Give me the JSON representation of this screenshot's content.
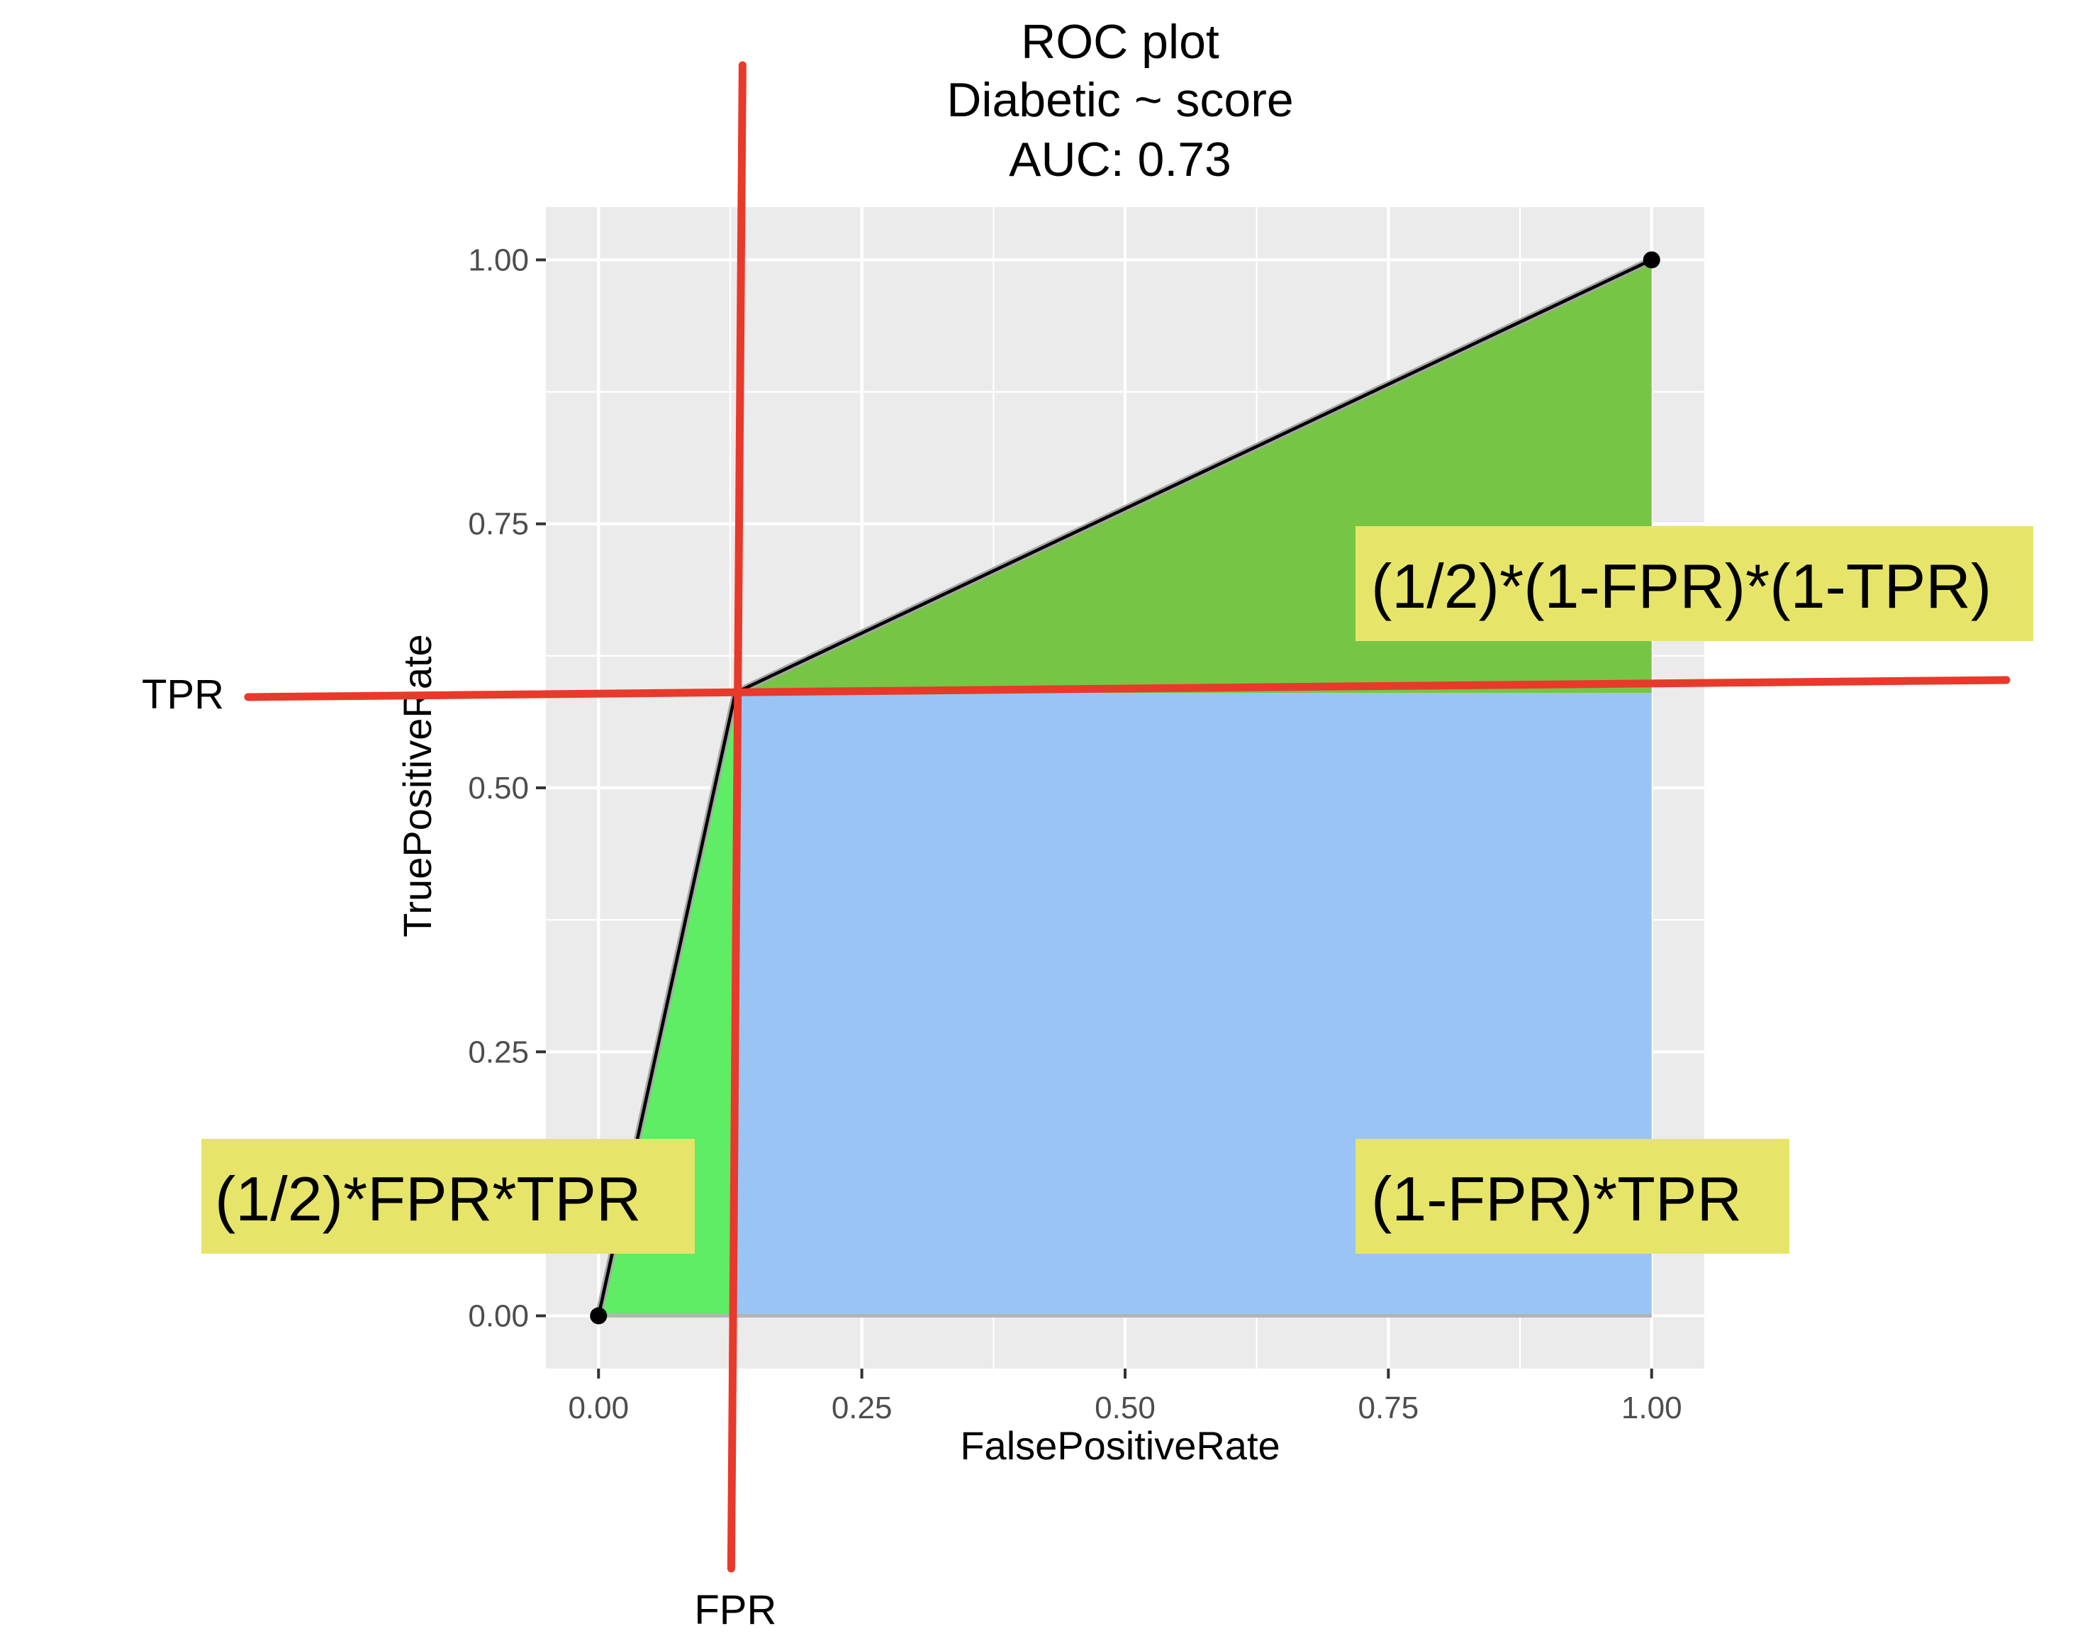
{
  "chart_data": {
    "type": "line",
    "title_lines": [
      "ROC plot",
      "Diabetic ~ score",
      "AUC: 0.73"
    ],
    "xlabel": "FalsePositiveRate",
    "ylabel": "TruePositiveRate",
    "xlim": [
      -0.05,
      1.05
    ],
    "ylim": [
      -0.05,
      1.05
    ],
    "x_ticks": [
      0,
      0.25,
      0.5,
      0.75,
      1
    ],
    "x_tick_labels": [
      "0.00",
      "0.25",
      "0.50",
      "0.75",
      "1.00"
    ],
    "y_ticks": [
      0,
      0.25,
      0.5,
      0.75,
      1
    ],
    "y_tick_labels": [
      "0.00",
      "0.25",
      "0.50",
      "0.75",
      "1.00"
    ],
    "grid": true,
    "series": [
      {
        "x": [
          0,
          0.13,
          1
        ],
        "y": [
          0,
          0.59,
          1
        ]
      }
    ],
    "reference_lines": {
      "fpr": {
        "x": 0.13,
        "label": "FPR"
      },
      "tpr": {
        "y": 0.59,
        "label": "TPR"
      }
    },
    "annotations": [
      {
        "text": "(1/2)*FPR*TPR",
        "region": "left triangle"
      },
      {
        "text": "(1-FPR)*TPR",
        "region": "rectangle"
      },
      {
        "text": "(1/2)*(1-FPR)*(1-TPR)",
        "region": "upper triangle"
      }
    ],
    "colors": {
      "panel_bg": "#ebebeb",
      "grid": "#ffffff",
      "left_triangle": "#5eed64",
      "rectangle": "#9ac4f3",
      "upper_triangle": "#77c545",
      "curve": "#000000",
      "marker_lines": "#e8392a",
      "annotation_bg": "#e6e56a"
    }
  }
}
